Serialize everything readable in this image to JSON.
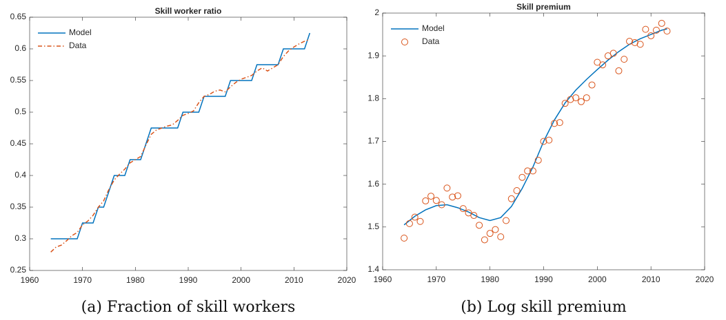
{
  "chart_data": [
    {
      "type": "line",
      "title": "Skill worker ratio",
      "caption": "(a) Fraction of skill workers",
      "xlim": [
        1960,
        2020
      ],
      "xticks": [
        1960,
        1970,
        1980,
        1990,
        2000,
        2010,
        2020
      ],
      "ylim": [
        0.25,
        0.65
      ],
      "yticks": [
        0.25,
        0.3,
        0.35,
        0.4,
        0.45,
        0.5,
        0.55,
        0.6,
        0.65
      ],
      "legend": "upper left",
      "series": [
        {
          "name": "Model",
          "color": "#0072BD",
          "style": "solid",
          "x": [
            1964,
            1965,
            1966,
            1967,
            1968,
            1969,
            1970,
            1971,
            1972,
            1973,
            1974,
            1975,
            1976,
            1977,
            1978,
            1979,
            1980,
            1981,
            1982,
            1983,
            1984,
            1985,
            1986,
            1987,
            1988,
            1989,
            1990,
            1991,
            1992,
            1993,
            1994,
            1995,
            1996,
            1997,
            1998,
            1999,
            2000,
            2001,
            2002,
            2003,
            2004,
            2005,
            2006,
            2007,
            2008,
            2009,
            2010,
            2011,
            2012,
            2013
          ],
          "values": [
            0.3,
            0.3,
            0.3,
            0.3,
            0.3,
            0.3,
            0.325,
            0.325,
            0.325,
            0.35,
            0.35,
            0.375,
            0.4,
            0.4,
            0.4,
            0.425,
            0.425,
            0.425,
            0.45,
            0.475,
            0.475,
            0.475,
            0.475,
            0.475,
            0.475,
            0.5,
            0.5,
            0.5,
            0.5,
            0.525,
            0.525,
            0.525,
            0.525,
            0.525,
            0.55,
            0.55,
            0.55,
            0.55,
            0.55,
            0.575,
            0.575,
            0.575,
            0.575,
            0.575,
            0.6,
            0.6,
            0.6,
            0.6,
            0.6,
            0.625
          ]
        },
        {
          "name": "Data",
          "color": "#D95319",
          "style": "dashdot",
          "x": [
            1964,
            1965,
            1966,
            1967,
            1968,
            1969,
            1970,
            1971,
            1972,
            1973,
            1974,
            1975,
            1976,
            1977,
            1978,
            1979,
            1980,
            1981,
            1982,
            1983,
            1984,
            1985,
            1986,
            1987,
            1988,
            1989,
            1990,
            1991,
            1992,
            1993,
            1994,
            1995,
            1996,
            1997,
            1998,
            1999,
            2000,
            2001,
            2002,
            2003,
            2004,
            2005,
            2006,
            2007,
            2008,
            2009,
            2010,
            2011,
            2012,
            2013
          ],
          "values": [
            0.279,
            0.287,
            0.29,
            0.297,
            0.305,
            0.31,
            0.322,
            0.328,
            0.337,
            0.35,
            0.36,
            0.378,
            0.393,
            0.402,
            0.41,
            0.42,
            0.425,
            0.43,
            0.448,
            0.465,
            0.472,
            0.475,
            0.478,
            0.48,
            0.487,
            0.495,
            0.498,
            0.502,
            0.515,
            0.525,
            0.528,
            0.533,
            0.535,
            0.532,
            0.54,
            0.547,
            0.552,
            0.555,
            0.558,
            0.565,
            0.57,
            0.565,
            0.57,
            0.575,
            0.588,
            0.597,
            0.603,
            0.608,
            0.612,
            0.615
          ]
        }
      ]
    },
    {
      "type": "line",
      "title": "Skill premium",
      "caption": "(b) Log skill premium",
      "xlim": [
        1960,
        2020
      ],
      "xticks": [
        1960,
        1970,
        1980,
        1990,
        2000,
        2010,
        2020
      ],
      "ylim": [
        1.4,
        2
      ],
      "yticks": [
        1.4,
        1.5,
        1.6,
        1.7,
        1.8,
        1.9,
        2
      ],
      "legend": "upper left",
      "series": [
        {
          "name": "Model",
          "color": "#0072BD",
          "style": "solid",
          "x": [
            1964,
            1966,
            1968,
            1970,
            1972,
            1974,
            1976,
            1978,
            1980,
            1982,
            1984,
            1986,
            1988,
            1990,
            1992,
            1994,
            1996,
            1998,
            2000,
            2002,
            2004,
            2006,
            2008,
            2010,
            2012,
            2013
          ],
          "values": [
            1.505,
            1.525,
            1.54,
            1.55,
            1.552,
            1.545,
            1.535,
            1.522,
            1.515,
            1.522,
            1.548,
            1.59,
            1.64,
            1.7,
            1.75,
            1.79,
            1.82,
            1.845,
            1.868,
            1.89,
            1.91,
            1.927,
            1.94,
            1.95,
            1.96,
            1.963
          ]
        },
        {
          "name": "Data",
          "color": "#D95319",
          "style": "marker",
          "x": [
            1964,
            1965,
            1966,
            1967,
            1968,
            1969,
            1970,
            1971,
            1972,
            1973,
            1974,
            1975,
            1976,
            1977,
            1978,
            1979,
            1980,
            1981,
            1982,
            1983,
            1984,
            1985,
            1986,
            1987,
            1988,
            1989,
            1990,
            1991,
            1992,
            1993,
            1994,
            1995,
            1996,
            1997,
            1998,
            1999,
            2000,
            2001,
            2002,
            2003,
            2004,
            2005,
            2006,
            2007,
            2008,
            2009,
            2010,
            2011,
            2012,
            2013
          ],
          "values": [
            1.474,
            1.508,
            1.523,
            1.513,
            1.561,
            1.572,
            1.562,
            1.552,
            1.591,
            1.57,
            1.573,
            1.543,
            1.533,
            1.527,
            1.504,
            1.47,
            1.485,
            1.494,
            1.477,
            1.515,
            1.566,
            1.585,
            1.616,
            1.631,
            1.631,
            1.656,
            1.7,
            1.703,
            1.742,
            1.744,
            1.789,
            1.798,
            1.802,
            1.793,
            1.802,
            1.832,
            1.885,
            1.879,
            1.9,
            1.906,
            1.865,
            1.892,
            1.934,
            1.931,
            1.927,
            1.962,
            1.947,
            1.96,
            1.976,
            1.958
          ]
        }
      ]
    }
  ]
}
